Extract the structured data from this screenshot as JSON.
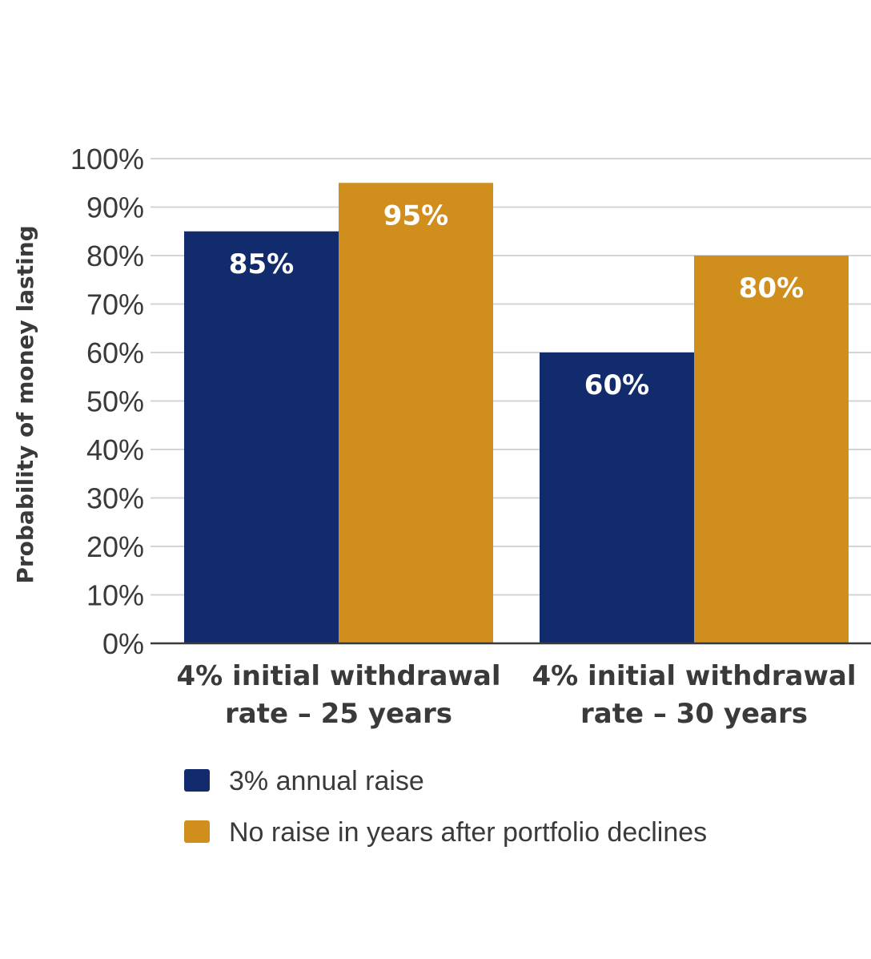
{
  "chart_data": {
    "type": "bar",
    "categories": [
      [
        "4% initial withdrawal",
        "rate – 25 years"
      ],
      [
        "4% initial withdrawal",
        "rate – 30 years"
      ]
    ],
    "series": [
      {
        "name": "3% annual raise",
        "values": [
          85,
          60
        ],
        "color": "#112b6c"
      },
      {
        "name": "No raise in years after portfolio declines",
        "values": [
          95,
          80
        ],
        "color": "#d08f1d"
      }
    ],
    "data_labels": [
      [
        "85%",
        "60%"
      ],
      [
        "95%",
        "80%"
      ]
    ],
    "ylabel": "Probability of money lasting",
    "ylim": [
      0,
      100
    ],
    "yticks": [
      0,
      10,
      20,
      30,
      40,
      50,
      60,
      70,
      80,
      90,
      100
    ],
    "ytick_labels": [
      "0%",
      "10%",
      "20%",
      "30%",
      "40%",
      "50%",
      "60%",
      "70%",
      "80%",
      "90%",
      "100%"
    ],
    "grid": true,
    "legend_position": "bottom"
  }
}
